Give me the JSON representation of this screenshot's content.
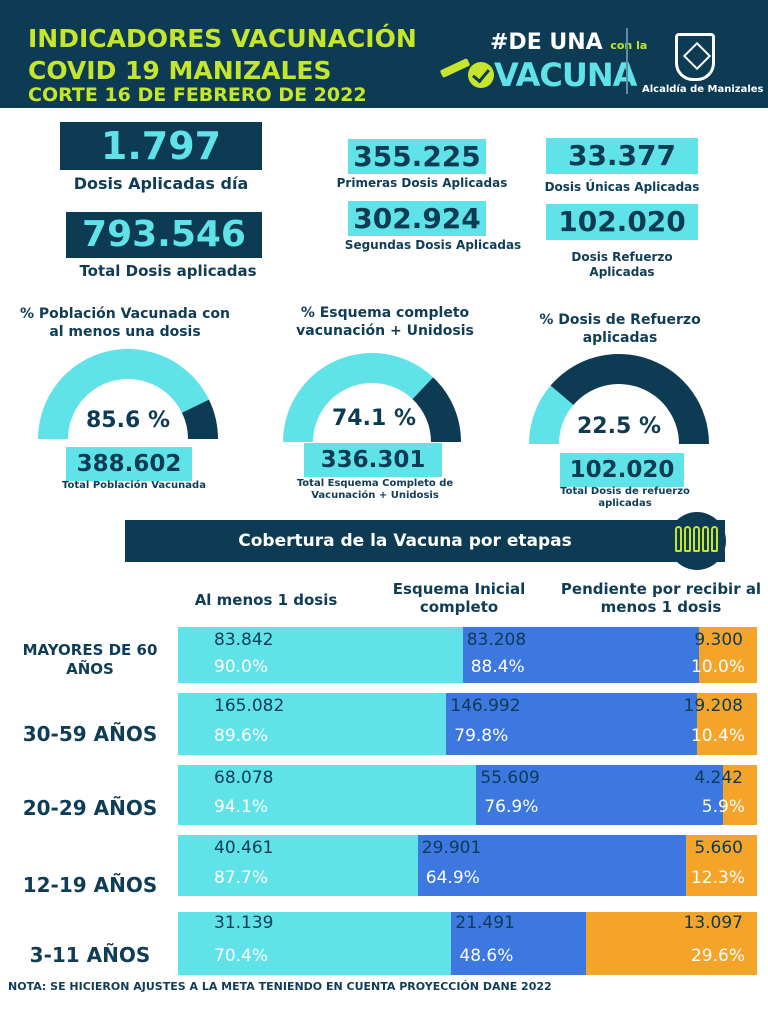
{
  "header": {
    "title_line1": "INDICADORES VACUNACIÓN",
    "title_line2": "COVID 19 MANIZALES",
    "cutoff": "CORTE 16 DE FEBRERO DE 2022",
    "campaign_hashtag": "#DE UNA",
    "campaign_connector": "con la",
    "campaign_word": "VACUNA",
    "institution": "Alcaldía de Manizales"
  },
  "kpis": {
    "daily_doses": {
      "value": "1.797",
      "label": "Dosis Aplicadas día"
    },
    "total_doses": {
      "value": "793.546",
      "label": "Total Dosis aplicadas"
    },
    "first_doses": {
      "value": "355.225",
      "label": "Primeras Dosis Aplicadas"
    },
    "second_doses": {
      "value": "302.924",
      "label": "Segundas Dosis Aplicadas"
    },
    "single_doses": {
      "value": "33.377",
      "label": "Dosis Únicas Aplicadas"
    },
    "booster_doses": {
      "value": "102.020",
      "label": "Dosis Refuerzo Aplicadas"
    }
  },
  "colors": {
    "navy": "#0e3b54",
    "cyan": "#5fe3e8",
    "blue": "#3c78e0",
    "orange": "#f5a42a",
    "lime": "#c6e62e"
  },
  "chart_data": [
    {
      "type": "pie",
      "title": "% Población Vacunada con al menos una dosis",
      "percent": 85.6,
      "percent_label": "85.6 %",
      "value": "388.602",
      "caption": "Total Población Vacunada"
    },
    {
      "type": "pie",
      "title": "% Esquema completo vacunación + Unidosis",
      "percent": 74.1,
      "percent_label": "74.1 %",
      "value": "336.301",
      "caption": "Total Esquema Completo de Vacunación + Unidosis"
    },
    {
      "type": "pie",
      "title": "% Dosis de Refuerzo aplicadas",
      "percent": 22.5,
      "percent_label": "22.5 %",
      "value": "102.020",
      "caption": "Total Dosis de refuerzo aplicadas"
    },
    {
      "type": "bar",
      "title": "Cobertura de la Vacuna por etapas",
      "columns": [
        "Al menos 1 dosis",
        "Esquema Inicial completo",
        "Pendiente por recibir al menos 1 dosis"
      ],
      "categories": [
        "MAYORES DE 60 AÑOS",
        "30-59 AÑOS",
        "20-29 AÑOS",
        "12-19 AÑOS",
        "3-11 AÑOS"
      ],
      "series": [
        {
          "name": "Al menos 1 dosis",
          "values": [
            "83.842",
            "165.082",
            "68.078",
            "40.461",
            "31.139"
          ],
          "percent_labels": [
            "90.0%",
            "89.6%",
            "94.1%",
            "87.7%",
            "70.4%"
          ],
          "percents": [
            90.0,
            89.6,
            94.1,
            87.7,
            70.4
          ]
        },
        {
          "name": "Esquema Inicial completo",
          "values": [
            "83.208",
            "146.992",
            "55.609",
            "29.901",
            "21.491"
          ],
          "percent_labels": [
            "88.4%",
            "79.8%",
            "76.9%",
            "64.9%",
            "48.6%"
          ],
          "percents": [
            88.4,
            79.8,
            76.9,
            64.9,
            48.6
          ]
        },
        {
          "name": "Pendiente por recibir al menos 1 dosis",
          "values": [
            "9.300",
            "19.208",
            "4.242",
            "5.660",
            "13.097"
          ],
          "percent_labels": [
            "10.0%",
            "10.4%",
            "5.9%",
            "12.3%",
            "29.6%"
          ],
          "percents": [
            10.0,
            10.4,
            5.9,
            12.3,
            29.6
          ]
        }
      ]
    }
  ],
  "note": "NOTA: SE HICIERON AJUSTES A LA META TENIENDO EN CUENTA PROYECCIÓN DANE 2022"
}
